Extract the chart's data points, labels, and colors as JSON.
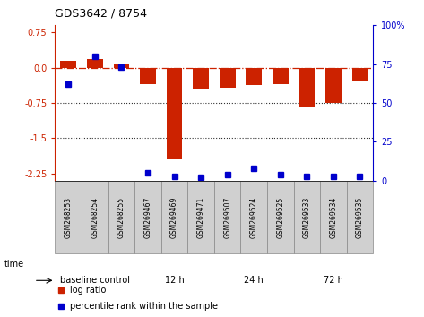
{
  "title": "GDS3642 / 8754",
  "samples": [
    "GSM268253",
    "GSM268254",
    "GSM268255",
    "GSM269467",
    "GSM269469",
    "GSM269471",
    "GSM269507",
    "GSM269524",
    "GSM269525",
    "GSM269533",
    "GSM269534",
    "GSM269535"
  ],
  "log_ratio": [
    0.15,
    0.18,
    0.07,
    -0.35,
    -1.95,
    -0.45,
    -0.42,
    -0.37,
    -0.35,
    -0.85,
    -0.75,
    -0.3
  ],
  "percentile_rank": [
    62,
    80,
    73,
    5,
    3,
    2,
    4,
    8,
    4,
    3,
    3,
    3
  ],
  "groups": [
    {
      "label": "baseline control",
      "start": 0,
      "end": 3
    },
    {
      "label": "12 h",
      "start": 3,
      "end": 6
    },
    {
      "label": "24 h",
      "start": 6,
      "end": 9
    },
    {
      "label": "72 h",
      "start": 9,
      "end": 12
    }
  ],
  "group_colors": [
    "#cceecc",
    "#88ee88",
    "#99ee99",
    "#55cc55"
  ],
  "ylim_left": [
    -2.4,
    0.9
  ],
  "yticks_left": [
    0.75,
    0.0,
    -0.75,
    -1.5,
    -2.25
  ],
  "yticks_right": [
    100,
    75,
    50,
    25,
    0
  ],
  "bar_color": "#cc2200",
  "dot_color": "#0000cc",
  "hline_color": "#cc2200",
  "dotted_line_color": "#333333",
  "bar_width": 0.6,
  "figsize": [
    4.73,
    3.54
  ],
  "dpi": 100
}
